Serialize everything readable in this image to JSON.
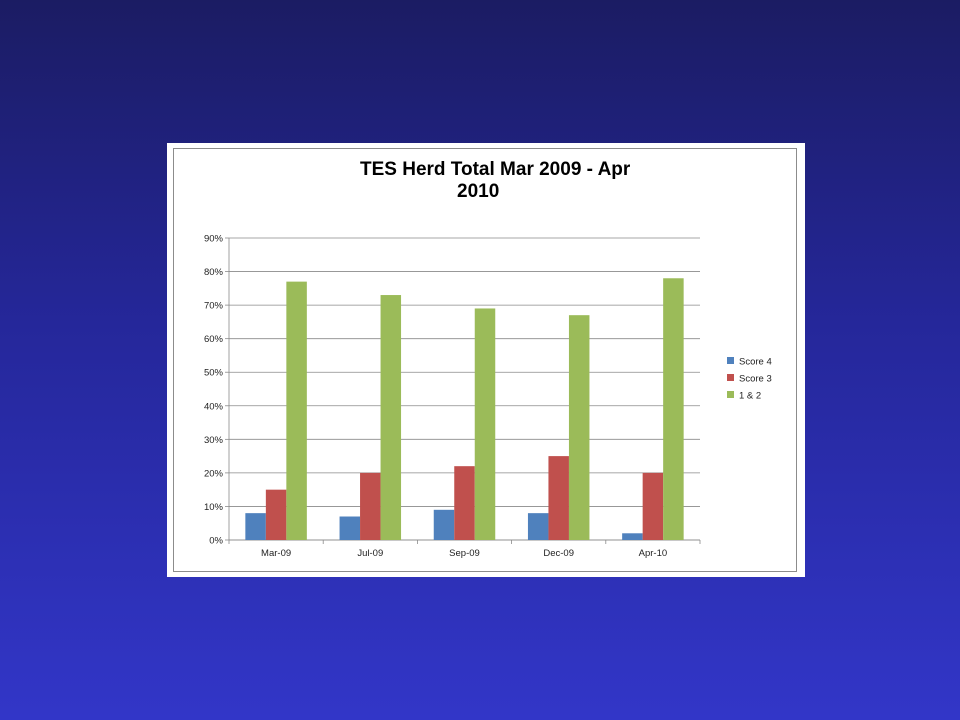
{
  "chart_data": {
    "type": "bar",
    "title": "TES Herd Total Mar 2009 - Apr 2010",
    "title_lines": [
      "TES Herd Total Mar 2009 - Apr",
      "2010"
    ],
    "categories": [
      "Mar-09",
      "Jul-09",
      "Sep-09",
      "Dec-09",
      "Apr-10"
    ],
    "series": [
      {
        "name": "Score 4",
        "color": "#4f81bd",
        "values": [
          8,
          7,
          9,
          8,
          2
        ]
      },
      {
        "name": "Score 3",
        "color": "#c0504d",
        "values": [
          15,
          20,
          22,
          25,
          20
        ]
      },
      {
        "name": "1 & 2",
        "color": "#9bbb59",
        "values": [
          77,
          73,
          69,
          67,
          78
        ]
      }
    ],
    "yticks": [
      "0%",
      "10%",
      "20%",
      "30%",
      "40%",
      "50%",
      "60%",
      "70%",
      "80%",
      "90%"
    ],
    "ylim": [
      0,
      90
    ],
    "unit": "%",
    "xlabel": "",
    "ylabel": "",
    "grid": true,
    "legend_position": "right"
  }
}
